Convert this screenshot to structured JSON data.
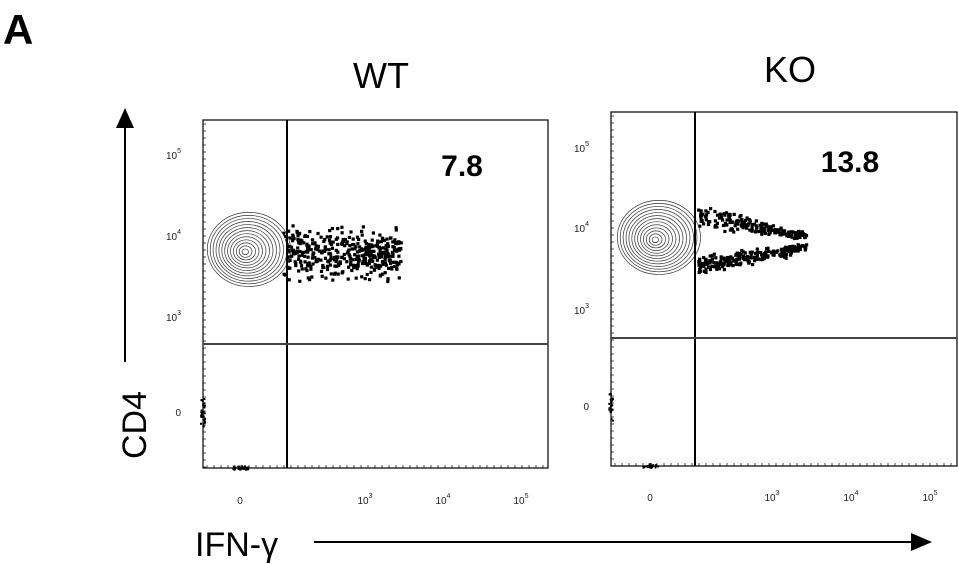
{
  "figure": {
    "panel_label": "A",
    "y_axis_label": "CD4",
    "x_axis_label": "IFN-γ",
    "plots": [
      {
        "title": "WT",
        "percentage": "7.8",
        "yticks": [
          {
            "base": "10",
            "sup": "5"
          },
          {
            "base": "10",
            "sup": "4"
          },
          {
            "base": "10",
            "sup": "3"
          },
          {
            "base": "0"
          }
        ],
        "xticks": [
          {
            "base": "0"
          },
          {
            "base": "10",
            "sup": "3"
          },
          {
            "base": "10",
            "sup": "4"
          },
          {
            "base": "10",
            "sup": "5"
          }
        ]
      },
      {
        "title": "KO",
        "percentage": "13.8",
        "yticks": [
          {
            "base": "10",
            "sup": "5"
          },
          {
            "base": "10",
            "sup": "4"
          },
          {
            "base": "10",
            "sup": "3"
          },
          {
            "base": "0"
          }
        ],
        "xticks": [
          {
            "base": "0"
          },
          {
            "base": "10",
            "sup": "3"
          },
          {
            "base": "10",
            "sup": "4"
          },
          {
            "base": "10",
            "sup": "5"
          }
        ]
      }
    ]
  }
}
